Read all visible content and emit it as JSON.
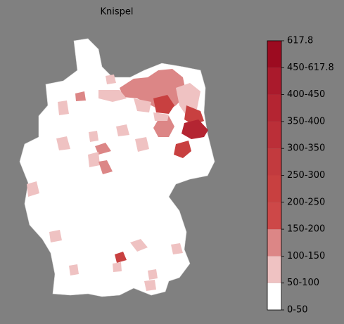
{
  "title": "Knispel",
  "colorbar": {
    "labels": [
      "0-50",
      "50-100",
      "100-150",
      "150-200",
      "200-250",
      "250-300",
      "300-350",
      "350-400",
      "400-450",
      "450-617.8",
      "617.8"
    ],
    "colors": [
      "#ffffff",
      "#efc2c2",
      "#dc8686",
      "#cd4848",
      "#c84040",
      "#c23a3e",
      "#bb2f38",
      "#b42532",
      "#aa1a2c",
      "#9c0b20"
    ]
  }
}
